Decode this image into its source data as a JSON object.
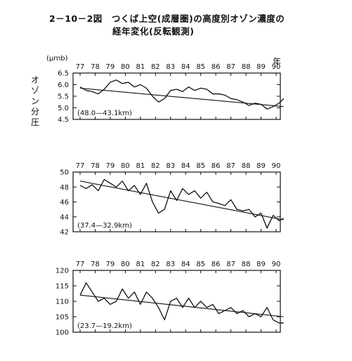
{
  "title_line1": "2－10－2図　つくば上空(成層圏)の高度別オゾン濃度の",
  "title_line2": "経年変化(反転観測)",
  "unit_label": "(μｍb)",
  "year_label": "年",
  "y_axis_label": "オゾン分圧",
  "chart_data": [
    {
      "type": "line",
      "title": "(48.0—43.1km)",
      "categories": [
        "77",
        "78",
        "79",
        "80",
        "81",
        "82",
        "83",
        "84",
        "85",
        "86",
        "87",
        "88",
        "89",
        "90"
      ],
      "ylim": [
        4.5,
        6.5
      ],
      "yticks": [
        "4.5",
        "5.0",
        "5.5",
        "6.0",
        "6.5"
      ],
      "series": [
        {
          "x": [
            0,
            0.4,
            0.8,
            1.2,
            1.6,
            2.0,
            2.4,
            2.8,
            3.2,
            3.6,
            4.0,
            4.4,
            4.8,
            5.2,
            5.6,
            6.0,
            6.4,
            6.8,
            7.2,
            7.6,
            8.0,
            8.4,
            8.8,
            9.2,
            9.6,
            10.0,
            10.4,
            10.8,
            11.2,
            11.6,
            12.0,
            12.4,
            12.8,
            13.2,
            13.5
          ],
          "values": [
            5.9,
            5.75,
            5.7,
            5.6,
            5.8,
            6.1,
            6.2,
            6.05,
            6.1,
            5.9,
            6.0,
            5.85,
            5.5,
            5.25,
            5.4,
            5.75,
            5.8,
            5.7,
            5.9,
            5.75,
            5.85,
            5.8,
            5.6,
            5.6,
            5.55,
            5.4,
            5.35,
            5.25,
            5.1,
            5.2,
            5.15,
            4.95,
            5.05,
            5.2,
            5.4
          ]
        },
        {
          "x": [
            0,
            13.5
          ],
          "values": [
            5.85,
            5.05
          ],
          "trend": true
        }
      ]
    },
    {
      "type": "line",
      "title": "(37.4—32.9km)",
      "categories": [
        "77",
        "78",
        "79",
        "80",
        "81",
        "82",
        "83",
        "84",
        "85",
        "86",
        "87",
        "88",
        "89",
        "90"
      ],
      "ylim": [
        42,
        50
      ],
      "yticks": [
        "42",
        "44",
        "46",
        "48",
        "50"
      ],
      "series": [
        {
          "x": [
            0,
            0.4,
            0.8,
            1.2,
            1.6,
            2.0,
            2.4,
            2.8,
            3.2,
            3.6,
            4.0,
            4.4,
            4.8,
            5.2,
            5.6,
            6.0,
            6.4,
            6.8,
            7.2,
            7.6,
            8.0,
            8.4,
            8.8,
            9.2,
            9.6,
            10.0,
            10.4,
            10.8,
            11.2,
            11.6,
            12.0,
            12.4,
            12.8,
            13.2,
            13.5
          ],
          "values": [
            48.2,
            47.8,
            48.3,
            47.5,
            49.0,
            48.5,
            48.0,
            48.8,
            47.5,
            48.2,
            47.0,
            48.5,
            46.0,
            44.5,
            45.0,
            47.5,
            46.2,
            47.8,
            47.0,
            47.5,
            46.5,
            47.3,
            46.0,
            45.8,
            45.5,
            46.3,
            45.0,
            44.8,
            45.0,
            44.0,
            44.5,
            42.5,
            44.2,
            43.5,
            43.8
          ]
        },
        {
          "x": [
            0,
            13.5
          ],
          "values": [
            48.8,
            43.6
          ],
          "trend": true
        }
      ]
    },
    {
      "type": "line",
      "title": "(23.7—19.2km)",
      "categories": [
        "77",
        "78",
        "79",
        "80",
        "81",
        "82",
        "83",
        "84",
        "85",
        "86",
        "87",
        "88",
        "89",
        "90"
      ],
      "ylim": [
        100,
        120
      ],
      "yticks": [
        "100",
        "105",
        "110",
        "115",
        "120"
      ],
      "series": [
        {
          "x": [
            0,
            0.4,
            0.8,
            1.2,
            1.6,
            2.0,
            2.4,
            2.8,
            3.2,
            3.6,
            4.0,
            4.4,
            4.8,
            5.2,
            5.6,
            6.0,
            6.4,
            6.8,
            7.2,
            7.6,
            8.0,
            8.4,
            8.8,
            9.2,
            9.6,
            10.0,
            10.4,
            10.8,
            11.2,
            11.6,
            12.0,
            12.4,
            12.8,
            13.2,
            13.5
          ],
          "values": [
            112,
            116,
            113,
            110,
            111,
            109,
            110,
            114,
            111,
            113,
            109,
            113,
            111,
            108,
            104,
            110,
            111,
            108,
            111,
            108,
            110,
            108,
            109,
            106,
            107,
            108,
            106,
            107,
            105,
            106,
            105,
            108,
            104,
            103,
            103
          ]
        },
        {
          "x": [
            0,
            13.5
          ],
          "values": [
            112,
            105
          ],
          "trend": true
        }
      ]
    }
  ]
}
